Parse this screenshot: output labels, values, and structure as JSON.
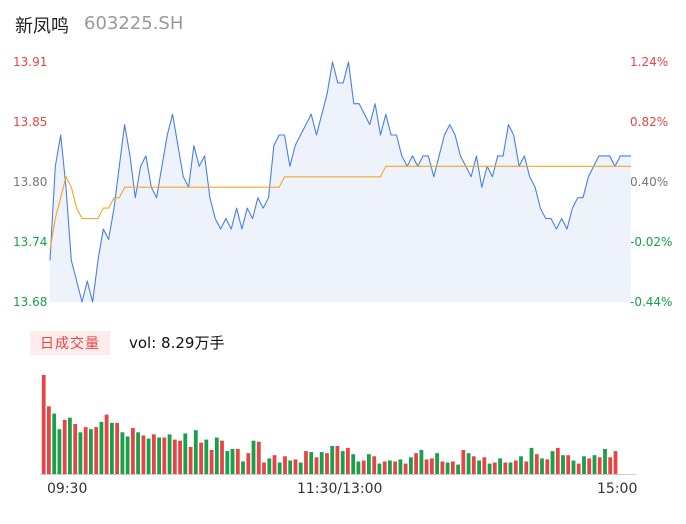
{
  "header": {
    "name": "新凤鸣",
    "code": "603225.SH"
  },
  "chart_data": [
    {
      "type": "line",
      "y_left_ticks": [
        "13.91",
        "13.85",
        "13.80",
        "13.74",
        "13.68"
      ],
      "y_right_ticks": [
        "1.24%",
        "0.82%",
        "0.40%",
        "-0.02%",
        "-0.44%"
      ],
      "ylim": [
        13.68,
        13.91
      ],
      "x_ticks": [
        "09:30",
        "11:30/13:00",
        "15:00"
      ],
      "series": [
        {
          "values": [
            13.72,
            13.81,
            13.84,
            13.79,
            13.72,
            13.7,
            13.68,
            13.7,
            13.68,
            13.72,
            13.75,
            13.74,
            13.77,
            13.81,
            13.85,
            13.82,
            13.78,
            13.81,
            13.82,
            13.79,
            13.78,
            13.81,
            13.84,
            13.86,
            13.83,
            13.8,
            13.79,
            13.83,
            13.81,
            13.82,
            13.78,
            13.76,
            13.75,
            13.76,
            13.75,
            13.77,
            13.75,
            13.77,
            13.76,
            13.78,
            13.77,
            13.78,
            13.83,
            13.84,
            13.84,
            13.81,
            13.83,
            13.84,
            13.85,
            13.86,
            13.84,
            13.86,
            13.88,
            13.91,
            13.89,
            13.89,
            13.91,
            13.87,
            13.87,
            13.86,
            13.85,
            13.87,
            13.84,
            13.86,
            13.84,
            13.84,
            13.82,
            13.81,
            13.82,
            13.81,
            13.82,
            13.82,
            13.8,
            13.82,
            13.84,
            13.85,
            13.84,
            13.82,
            13.81,
            13.8,
            13.82,
            13.79,
            13.81,
            13.8,
            13.82,
            13.82,
            13.85,
            13.84,
            13.81,
            13.82,
            13.8,
            13.79,
            13.77,
            13.76,
            13.76,
            13.75,
            13.76,
            13.75,
            13.77,
            13.78,
            13.78,
            13.8,
            13.81,
            13.82,
            13.82,
            13.82,
            13.81,
            13.82,
            13.82,
            13.82
          ],
          "color": "#4a7fe8"
        },
        {
          "values": [
            13.73,
            13.76,
            13.78,
            13.8,
            13.79,
            13.77,
            13.76,
            13.76,
            13.76,
            13.76,
            13.77,
            13.77,
            13.78,
            13.78,
            13.79,
            13.79,
            13.79,
            13.79,
            13.79,
            13.79,
            13.79,
            13.79,
            13.79,
            13.79,
            13.79,
            13.79,
            13.79,
            13.79,
            13.79,
            13.79,
            13.79,
            13.79,
            13.79,
            13.79,
            13.79,
            13.79,
            13.79,
            13.79,
            13.79,
            13.79,
            13.79,
            13.79,
            13.79,
            13.79,
            13.8,
            13.8,
            13.8,
            13.8,
            13.8,
            13.8,
            13.8,
            13.8,
            13.8,
            13.8,
            13.8,
            13.8,
            13.8,
            13.8,
            13.8,
            13.8,
            13.8,
            13.8,
            13.8,
            13.81,
            13.81,
            13.81,
            13.81,
            13.81,
            13.81,
            13.81,
            13.81,
            13.81,
            13.81,
            13.81,
            13.81,
            13.81,
            13.81,
            13.81,
            13.81,
            13.81,
            13.81,
            13.81,
            13.81,
            13.81,
            13.81,
            13.81,
            13.81,
            13.81,
            13.81,
            13.81,
            13.81,
            13.81,
            13.81,
            13.81,
            13.81,
            13.81,
            13.81,
            13.81,
            13.81,
            13.81,
            13.81,
            13.81,
            13.81,
            13.81,
            13.81,
            13.81,
            13.81,
            13.81,
            13.81,
            13.81
          ],
          "color": "#f5a623"
        }
      ],
      "colors": {
        "up": "#e64545",
        "down": "#19a04a",
        "neutral": "#777777",
        "area_fill": "#eef2fb"
      }
    },
    {
      "type": "bar",
      "values": [
        95,
        65,
        58,
        43,
        52,
        54,
        48,
        40,
        45,
        43,
        45,
        50,
        57,
        49,
        49,
        40,
        36,
        44,
        40,
        37,
        34,
        38,
        35,
        35,
        38,
        33,
        32,
        39,
        26,
        42,
        30,
        33,
        23,
        35,
        32,
        22,
        24,
        24,
        12,
        20,
        32,
        31,
        11,
        15,
        18,
        11,
        17,
        13,
        14,
        11,
        22,
        21,
        16,
        21,
        20,
        27,
        27,
        22,
        25,
        19,
        12,
        13,
        19,
        17,
        10,
        12,
        13,
        12,
        14,
        10,
        16,
        20,
        23,
        14,
        15,
        20,
        12,
        11,
        12,
        9,
        23,
        20,
        17,
        13,
        16,
        10,
        11,
        15,
        11,
        11,
        13,
        17,
        12,
        25,
        19,
        15,
        14,
        22,
        25,
        18,
        18,
        13,
        10,
        17,
        15,
        18,
        16,
        24,
        16,
        22
      ],
      "up_flags": [
        1,
        1,
        0,
        0,
        1,
        0,
        1,
        0,
        1,
        0,
        1,
        0,
        1,
        0,
        1,
        0,
        0,
        1,
        0,
        1,
        0,
        1,
        0,
        1,
        0,
        1,
        1,
        0,
        1,
        0,
        1,
        0,
        1,
        0,
        1,
        0,
        0,
        1,
        0,
        1,
        0,
        1,
        1,
        0,
        1,
        0,
        1,
        0,
        1,
        0,
        1,
        0,
        1,
        0,
        1,
        0,
        1,
        0,
        1,
        0,
        0,
        1,
        0,
        1,
        0,
        1,
        0,
        1,
        0,
        1,
        0,
        1,
        0,
        1,
        1,
        0,
        1,
        0,
        1,
        0,
        1,
        0,
        1,
        0,
        1,
        0,
        1,
        0,
        1,
        0,
        1,
        0,
        1,
        0,
        1,
        0,
        1,
        0,
        1,
        0,
        1,
        0,
        1,
        0,
        1,
        0,
        1,
        0,
        1,
        1
      ],
      "volume_label": "日成交量",
      "volume_text": "vol: 8.29万手"
    }
  ]
}
